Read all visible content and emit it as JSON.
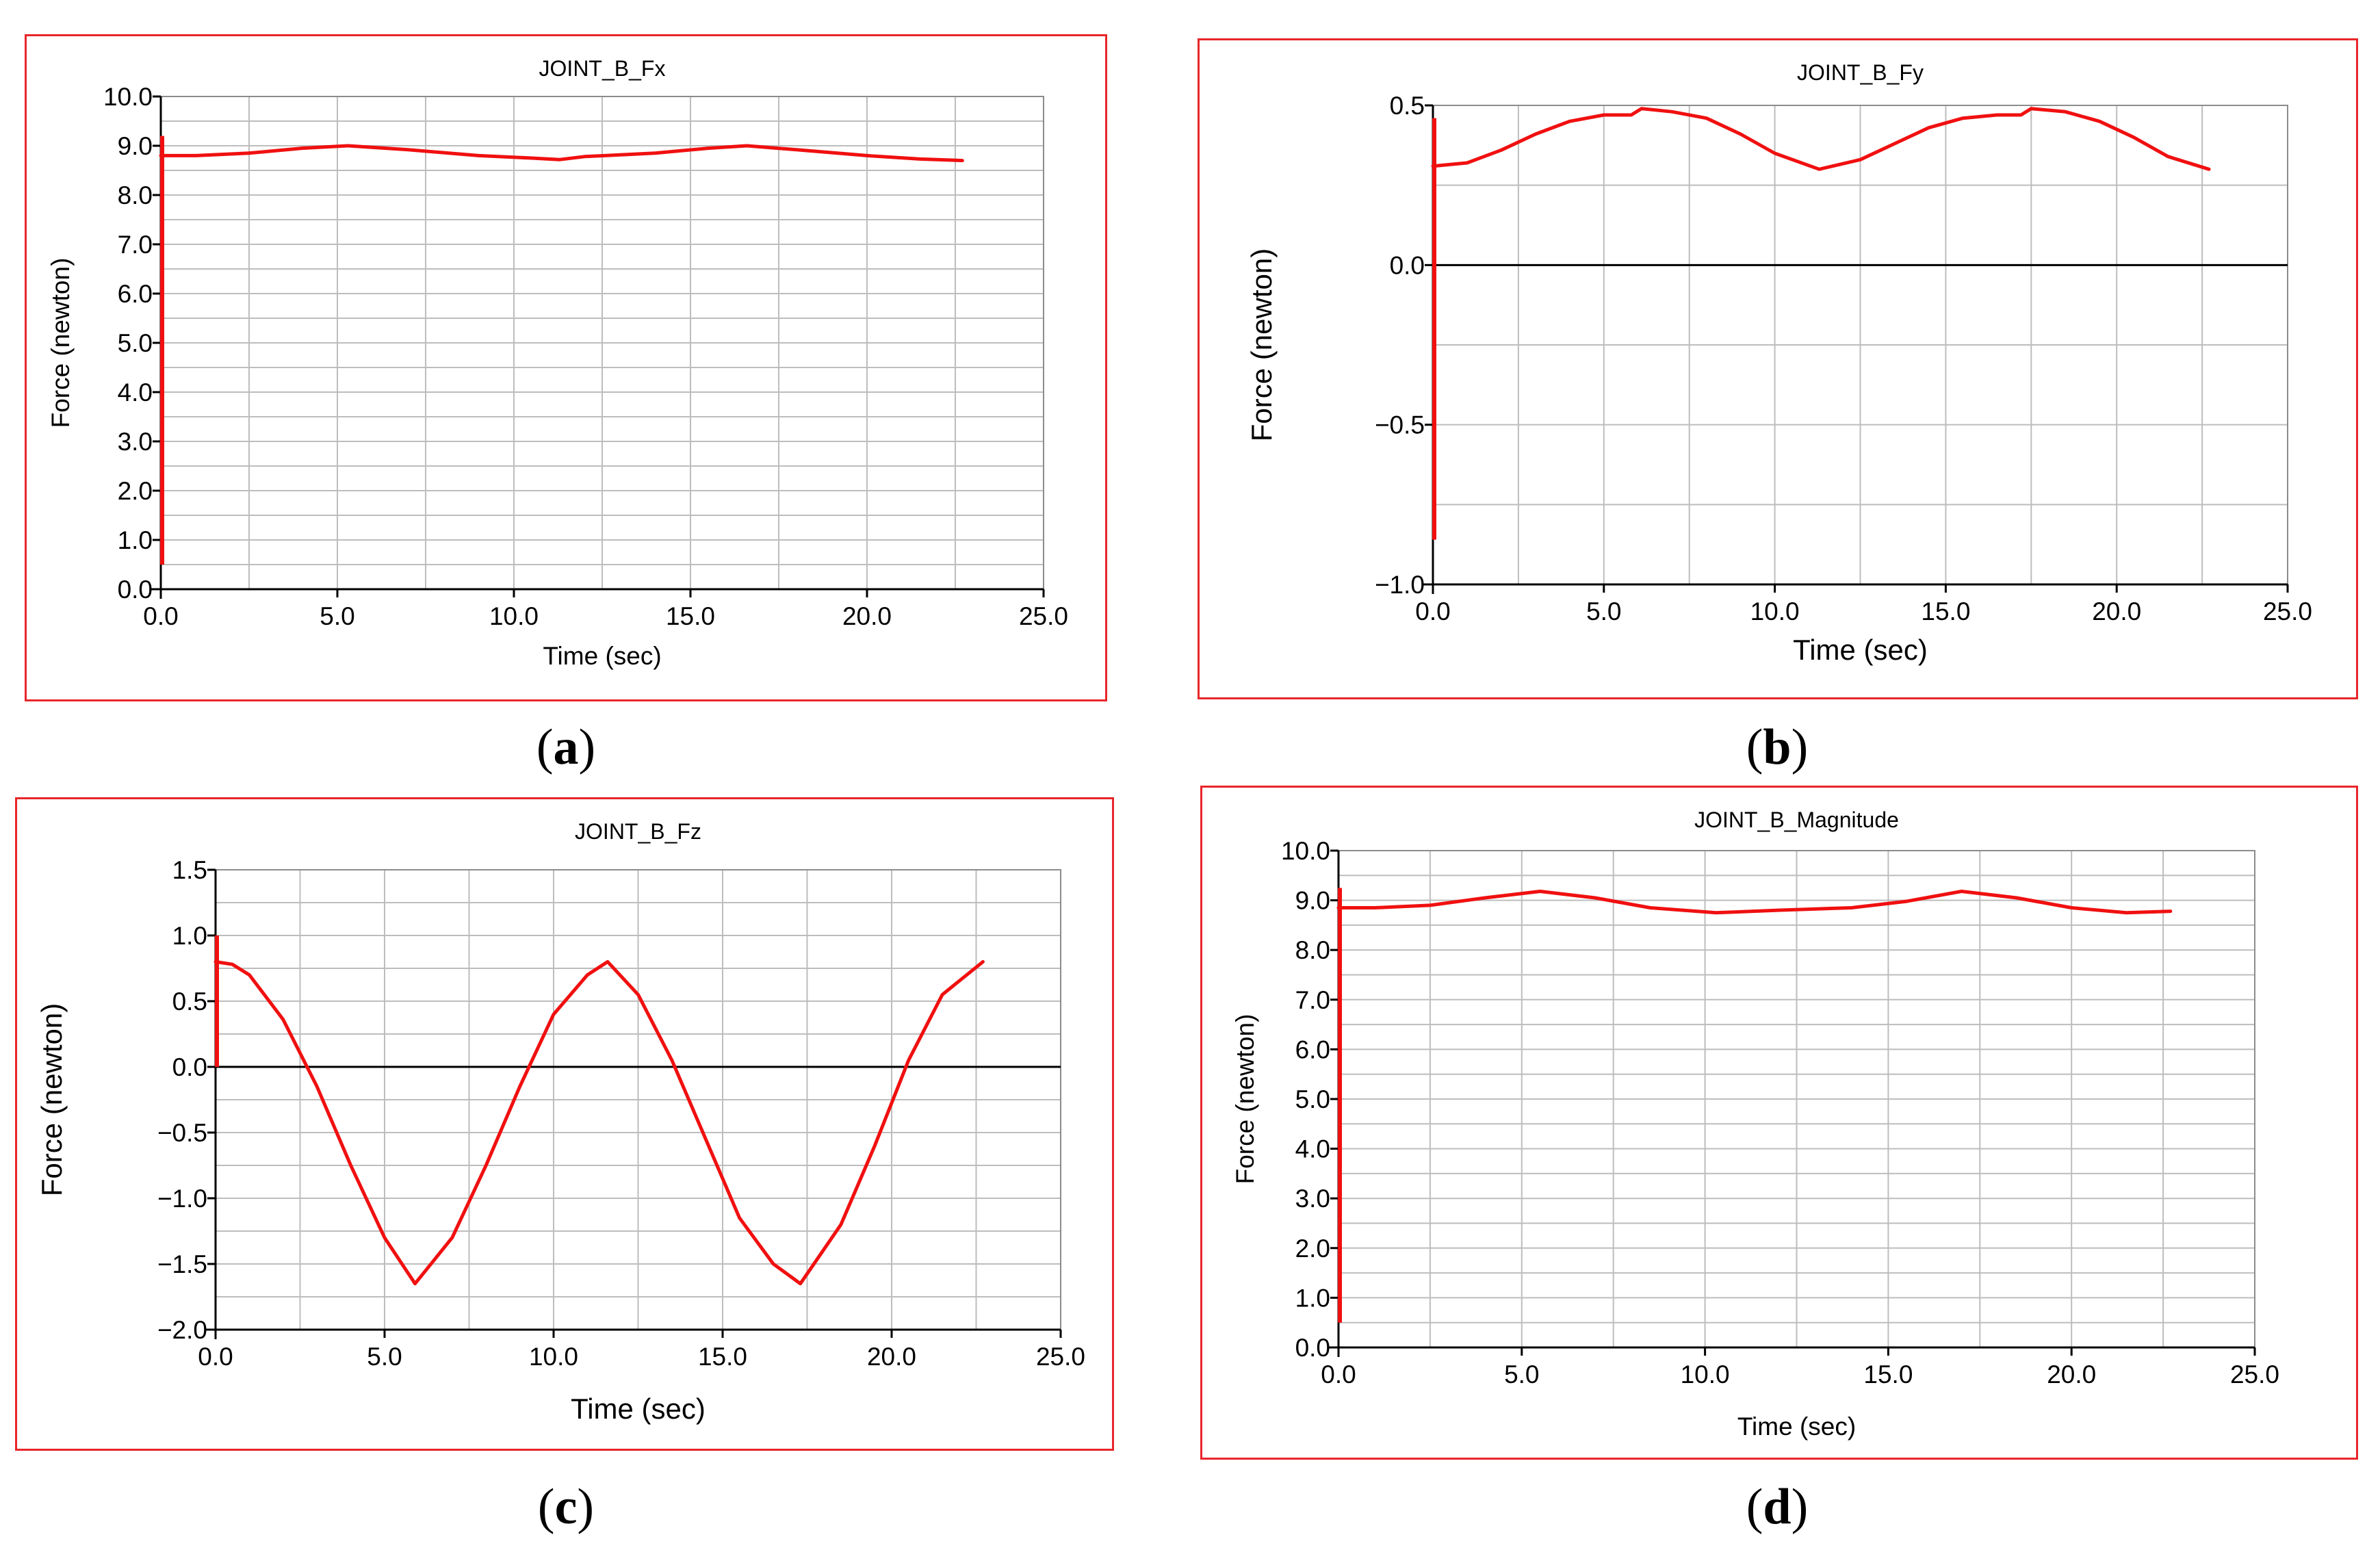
{
  "colors": {
    "frame": "#e8262a",
    "series": "#f01010",
    "grid": "#bdbdbd",
    "axis": "#000000"
  },
  "chart_data": [
    {
      "id": "a",
      "panel_label": "a",
      "type": "line",
      "title": "JOINT_B_Fx",
      "xlabel": "Time (sec)",
      "ylabel": "Force (newton)",
      "xlim": [
        0,
        25
      ],
      "ylim": [
        0,
        10
      ],
      "zero_line": false,
      "xticks": [
        0,
        5,
        10,
        15,
        20,
        25
      ],
      "xtick_labels": [
        "0.0",
        "5.0",
        "10.0",
        "15.0",
        "20.0",
        "25.0"
      ],
      "yticks": [
        0,
        1,
        2,
        3,
        4,
        5,
        6,
        7,
        8,
        9,
        10
      ],
      "ytick_labels": [
        "0.0",
        "1.0",
        "2.0",
        "3.0",
        "4.0",
        "5.0",
        "6.0",
        "7.0",
        "8.0",
        "9.0",
        "10.0"
      ],
      "x_minor": 2,
      "y_minor": 2,
      "spike": {
        "x": 0,
        "y_min": 0.5,
        "y_max": 9.2
      },
      "series": [
        {
          "name": "JOINT_B_Fx",
          "x": [
            0,
            1,
            2.5,
            4,
            5.3,
            7,
            9,
            10.5,
            11.3,
            12,
            14,
            15.5,
            16.6,
            18,
            20,
            21.5,
            22.7
          ],
          "y": [
            8.8,
            8.8,
            8.85,
            8.95,
            9.0,
            8.92,
            8.8,
            8.75,
            8.72,
            8.78,
            8.85,
            8.95,
            9.0,
            8.92,
            8.8,
            8.73,
            8.7
          ]
        }
      ]
    },
    {
      "id": "b",
      "panel_label": "b",
      "type": "line",
      "title": "JOINT_B_Fy",
      "xlabel": "Time (sec)",
      "ylabel": "Force (newton)",
      "xlim": [
        0,
        25
      ],
      "ylim": [
        -1.0,
        0.5
      ],
      "zero_line": true,
      "xticks": [
        0,
        5,
        10,
        15,
        20,
        25
      ],
      "xtick_labels": [
        "0.0",
        "5.0",
        "10.0",
        "15.0",
        "20.0",
        "25.0"
      ],
      "yticks": [
        -1.0,
        -0.5,
        0.0,
        0.5
      ],
      "ytick_labels": [
        "−1.0",
        "−0.5",
        "0.0",
        "0.5"
      ],
      "x_minor": 2,
      "y_minor": 2,
      "spike": {
        "x": 0,
        "y_min": -0.86,
        "y_max": 0.46
      },
      "series": [
        {
          "name": "JOINT_B_Fy",
          "x": [
            0,
            1,
            2,
            3,
            4,
            5,
            5.8,
            6.1,
            7,
            8,
            9,
            10,
            11.3,
            12.5,
            13.5,
            14.5,
            15.5,
            16.5,
            17.2,
            17.5,
            18.5,
            19.5,
            20.5,
            21.5,
            22.7
          ],
          "y": [
            0.31,
            0.32,
            0.36,
            0.41,
            0.45,
            0.47,
            0.47,
            0.49,
            0.48,
            0.46,
            0.41,
            0.35,
            0.3,
            0.33,
            0.38,
            0.43,
            0.46,
            0.47,
            0.47,
            0.49,
            0.48,
            0.45,
            0.4,
            0.34,
            0.3
          ]
        }
      ]
    },
    {
      "id": "c",
      "panel_label": "c",
      "type": "line",
      "title": "JOINT_B_Fz",
      "xlabel": "Time (sec)",
      "ylabel": "Force (newton)",
      "xlim": [
        0,
        25
      ],
      "ylim": [
        -2.0,
        1.5
      ],
      "zero_line": true,
      "xticks": [
        0,
        5,
        10,
        15,
        20,
        25
      ],
      "xtick_labels": [
        "0.0",
        "5.0",
        "10.0",
        "15.0",
        "20.0",
        "25.0"
      ],
      "yticks": [
        -2.0,
        -1.5,
        -1.0,
        -0.5,
        0.0,
        0.5,
        1.0,
        1.5
      ],
      "ytick_labels": [
        "−2.0",
        "−1.5",
        "−1.0",
        "−0.5",
        "0.0",
        "0.5",
        "1.0",
        "1.5"
      ],
      "x_minor": 2,
      "y_minor": 2,
      "spike": {
        "x": 0,
        "y_min": 0.0,
        "y_max": 1.0
      },
      "series": [
        {
          "name": "JOINT_B_Fz",
          "x": [
            0,
            0.5,
            1,
            2,
            3,
            4,
            5,
            5.9,
            7,
            8,
            9,
            10,
            11,
            11.6,
            12.5,
            13.5,
            14.5,
            15.5,
            16.5,
            17.3,
            18.5,
            19.5,
            20.5,
            21.5,
            22.7
          ],
          "y": [
            0.8,
            0.78,
            0.7,
            0.36,
            -0.15,
            -0.75,
            -1.3,
            -1.65,
            -1.3,
            -0.75,
            -0.15,
            0.4,
            0.7,
            0.8,
            0.55,
            0.05,
            -0.55,
            -1.15,
            -1.5,
            -1.65,
            -1.2,
            -0.6,
            0.05,
            0.55,
            0.8
          ]
        }
      ]
    },
    {
      "id": "d",
      "panel_label": "d",
      "type": "line",
      "title": "JOINT_B_Magnitude",
      "xlabel": "Time (sec)",
      "ylabel": "Force (newton)",
      "xlim": [
        0,
        25
      ],
      "ylim": [
        0,
        10
      ],
      "zero_line": false,
      "xticks": [
        0,
        5,
        10,
        15,
        20,
        25
      ],
      "xtick_labels": [
        "0.0",
        "5.0",
        "10.0",
        "15.0",
        "20.0",
        "25.0"
      ],
      "yticks": [
        0,
        1,
        2,
        3,
        4,
        5,
        6,
        7,
        8,
        9,
        10
      ],
      "ytick_labels": [
        "0.0",
        "1.0",
        "2.0",
        "3.0",
        "4.0",
        "5.0",
        "6.0",
        "7.0",
        "8.0",
        "9.0",
        "10.0"
      ],
      "x_minor": 2,
      "y_minor": 2,
      "spike": {
        "x": 0,
        "y_min": 0.5,
        "y_max": 9.25
      },
      "series": [
        {
          "name": "JOINT_B_Magnitude",
          "x": [
            0,
            1,
            2.5,
            4,
            5.5,
            7,
            8.5,
            10.3,
            12,
            14,
            15.5,
            17,
            18.5,
            20,
            21.5,
            22.7
          ],
          "y": [
            8.85,
            8.85,
            8.9,
            9.05,
            9.18,
            9.05,
            8.85,
            8.75,
            8.8,
            8.85,
            8.98,
            9.18,
            9.05,
            8.85,
            8.75,
            8.78
          ]
        }
      ]
    }
  ]
}
